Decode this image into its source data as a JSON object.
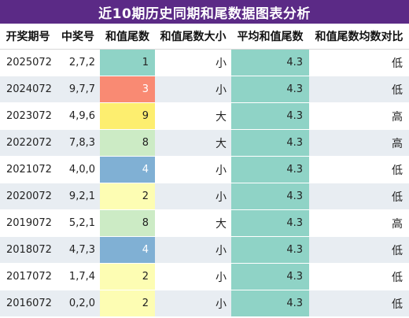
{
  "title": "近10期历史同期和尾数据图表分析",
  "columns": [
    "开奖期号",
    "中奖号",
    "和值尾数",
    "和值尾数大小",
    "平均和值尾数",
    "和值尾数均数对比"
  ],
  "colors": {
    "title_bg": "#5b2a86",
    "avg_bg": "#8fd3c6",
    "tail_1": "#8fd3c6",
    "tail_2": "#fdfdb3",
    "tail_3": "#f98a73",
    "tail_4": "#80b0d4",
    "tail_8": "#ccebc5",
    "tail_9": "#fdee6f"
  },
  "rows": [
    {
      "period": "2025072",
      "numbers": "2,7,2",
      "tail": "1",
      "size": "小",
      "avg": "4.3",
      "compare": "低",
      "tail_color": "#8fd3c6",
      "tail_text_color": "#222222"
    },
    {
      "period": "2024072",
      "numbers": "9,7,7",
      "tail": "3",
      "size": "小",
      "avg": "4.3",
      "compare": "低",
      "tail_color": "#f98a73",
      "tail_text_color": "#ffffff"
    },
    {
      "period": "2023072",
      "numbers": "4,9,6",
      "tail": "9",
      "size": "大",
      "avg": "4.3",
      "compare": "高",
      "tail_color": "#fdee6f",
      "tail_text_color": "#222222"
    },
    {
      "period": "2022072",
      "numbers": "7,8,3",
      "tail": "8",
      "size": "大",
      "avg": "4.3",
      "compare": "高",
      "tail_color": "#ccebc5",
      "tail_text_color": "#222222"
    },
    {
      "period": "2021072",
      "numbers": "4,0,0",
      "tail": "4",
      "size": "小",
      "avg": "4.3",
      "compare": "低",
      "tail_color": "#80b0d4",
      "tail_text_color": "#ffffff"
    },
    {
      "period": "2020072",
      "numbers": "9,2,1",
      "tail": "2",
      "size": "小",
      "avg": "4.3",
      "compare": "低",
      "tail_color": "#fdfdb3",
      "tail_text_color": "#222222"
    },
    {
      "period": "2019072",
      "numbers": "5,2,1",
      "tail": "8",
      "size": "大",
      "avg": "4.3",
      "compare": "高",
      "tail_color": "#ccebc5",
      "tail_text_color": "#222222"
    },
    {
      "period": "2018072",
      "numbers": "4,7,3",
      "tail": "4",
      "size": "小",
      "avg": "4.3",
      "compare": "低",
      "tail_color": "#80b0d4",
      "tail_text_color": "#ffffff"
    },
    {
      "period": "2017072",
      "numbers": "1,7,4",
      "tail": "2",
      "size": "小",
      "avg": "4.3",
      "compare": "低",
      "tail_color": "#fdfdb3",
      "tail_text_color": "#222222"
    },
    {
      "period": "2016072",
      "numbers": "0,2,0",
      "tail": "2",
      "size": "小",
      "avg": "4.3",
      "compare": "低",
      "tail_color": "#fdfdb3",
      "tail_text_color": "#222222"
    }
  ]
}
